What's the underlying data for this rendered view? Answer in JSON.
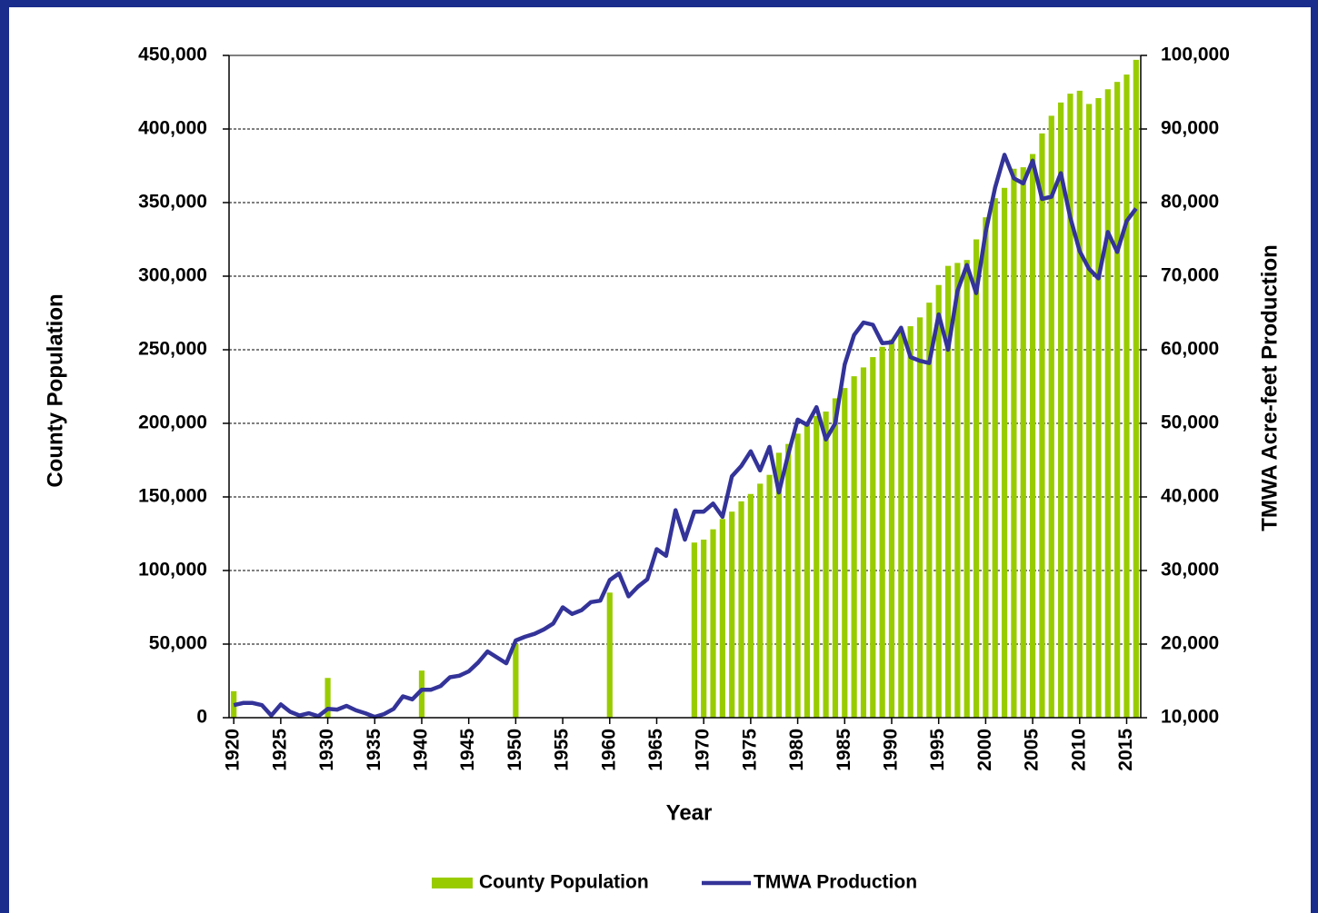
{
  "chart_data": {
    "type": "bar",
    "x_label": "Year",
    "y_label": "County Population",
    "y2_label": "TMWA Acre-feet Production",
    "x": [
      1920,
      1921,
      1922,
      1923,
      1924,
      1925,
      1926,
      1927,
      1928,
      1929,
      1930,
      1931,
      1932,
      1933,
      1934,
      1935,
      1936,
      1937,
      1938,
      1939,
      1940,
      1941,
      1942,
      1943,
      1944,
      1945,
      1946,
      1947,
      1948,
      1949,
      1950,
      1951,
      1952,
      1953,
      1954,
      1955,
      1956,
      1957,
      1958,
      1959,
      1960,
      1961,
      1962,
      1963,
      1964,
      1965,
      1966,
      1967,
      1968,
      1969,
      1970,
      1971,
      1972,
      1973,
      1974,
      1975,
      1976,
      1977,
      1978,
      1979,
      1980,
      1981,
      1982,
      1983,
      1984,
      1985,
      1986,
      1987,
      1988,
      1989,
      1990,
      1991,
      1992,
      1993,
      1994,
      1995,
      1996,
      1997,
      1998,
      1999,
      2000,
      2001,
      2002,
      2003,
      2004,
      2005,
      2006,
      2007,
      2008,
      2009,
      2010,
      2011,
      2012,
      2013,
      2014,
      2015,
      2016
    ],
    "xlim": [
      1919.5,
      2016.5
    ],
    "xticks": [
      1920,
      1925,
      1930,
      1935,
      1940,
      1945,
      1950,
      1955,
      1960,
      1965,
      1970,
      1975,
      1980,
      1985,
      1990,
      1995,
      2000,
      2005,
      2010,
      2015
    ],
    "ylim": [
      0,
      450000
    ],
    "yticks": [
      0,
      {
        "value": 50000,
        "label": "50,000"
      },
      {
        "value": 100000,
        "label": "100,000"
      },
      {
        "value": 150000,
        "label": "150,000"
      },
      {
        "value": 200000,
        "label": "200,000"
      },
      {
        "value": 250000,
        "label": "250,000"
      },
      {
        "value": 300000,
        "label": "300,000"
      },
      {
        "value": 350000,
        "label": "350,000"
      },
      {
        "value": 400000,
        "label": "400,000"
      },
      {
        "value": 450000,
        "label": "450,000"
      }
    ],
    "y2lim": [
      10000,
      100000
    ],
    "y2ticks": [
      {
        "value": 10000,
        "label": "10,000"
      },
      {
        "value": 20000,
        "label": "20,000"
      },
      {
        "value": 30000,
        "label": "30,000"
      },
      {
        "value": 40000,
        "label": "40,000"
      },
      {
        "value": 50000,
        "label": "50,000"
      },
      {
        "value": 60000,
        "label": "60,000"
      },
      {
        "value": 70000,
        "label": "70,000"
      },
      {
        "value": 80000,
        "label": "80,000"
      },
      {
        "value": 90000,
        "label": "90,000"
      },
      {
        "value": 100000,
        "label": "100,000"
      }
    ],
    "grid": true,
    "legend": "bottom",
    "series": [
      {
        "name": "County Population",
        "type": "bar",
        "axis": "y",
        "color": "#99cc00",
        "values": [
          18000,
          null,
          null,
          null,
          null,
          null,
          null,
          null,
          null,
          null,
          27000,
          null,
          null,
          null,
          null,
          null,
          null,
          null,
          null,
          null,
          32000,
          null,
          null,
          null,
          null,
          null,
          null,
          null,
          null,
          null,
          50000,
          null,
          null,
          null,
          null,
          null,
          null,
          null,
          null,
          null,
          85000,
          null,
          null,
          null,
          null,
          null,
          null,
          null,
          null,
          119000,
          121000,
          128000,
          135000,
          140000,
          147000,
          152000,
          159000,
          165000,
          180000,
          186000,
          193000,
          200000,
          205000,
          208000,
          217000,
          224000,
          232000,
          238000,
          245000,
          252000,
          257000,
          262000,
          266000,
          272000,
          282000,
          294000,
          307000,
          309000,
          311000,
          325000,
          340000,
          353000,
          360000,
          373000,
          374000,
          383000,
          397000,
          409000,
          418000,
          424000,
          426000,
          417000,
          421000,
          427000,
          432000,
          437000,
          447000
        ]
      },
      {
        "name": "TMWA Production",
        "type": "line",
        "axis": "y2",
        "color": "#333399",
        "values": [
          11700,
          12000,
          12000,
          11700,
          10300,
          11800,
          10800,
          10300,
          10600,
          10200,
          11200,
          11100,
          11600,
          11000,
          10600,
          10100,
          10500,
          11200,
          12900,
          12500,
          13800,
          13800,
          14300,
          15500,
          15700,
          16300,
          17500,
          19000,
          18200,
          17400,
          20500,
          21000,
          21400,
          22000,
          22800,
          25000,
          24100,
          24600,
          25700,
          25900,
          28700,
          29600,
          26500,
          27800,
          28800,
          32900,
          32000,
          38200,
          34200,
          38000,
          38000,
          39100,
          37300,
          42800,
          44200,
          46200,
          43600,
          46800,
          40600,
          45800,
          50500,
          49800,
          52200,
          47800,
          50000,
          58000,
          62000,
          63700,
          63400,
          60900,
          61000,
          63000,
          59000,
          58500,
          58200,
          64800,
          60000,
          68000,
          71500,
          67700,
          76000,
          82000,
          86500,
          83300,
          82600,
          85700,
          80500,
          80800,
          84000,
          78000,
          73400,
          71000,
          69700,
          76000,
          73300,
          77500,
          79200
        ]
      }
    ]
  }
}
